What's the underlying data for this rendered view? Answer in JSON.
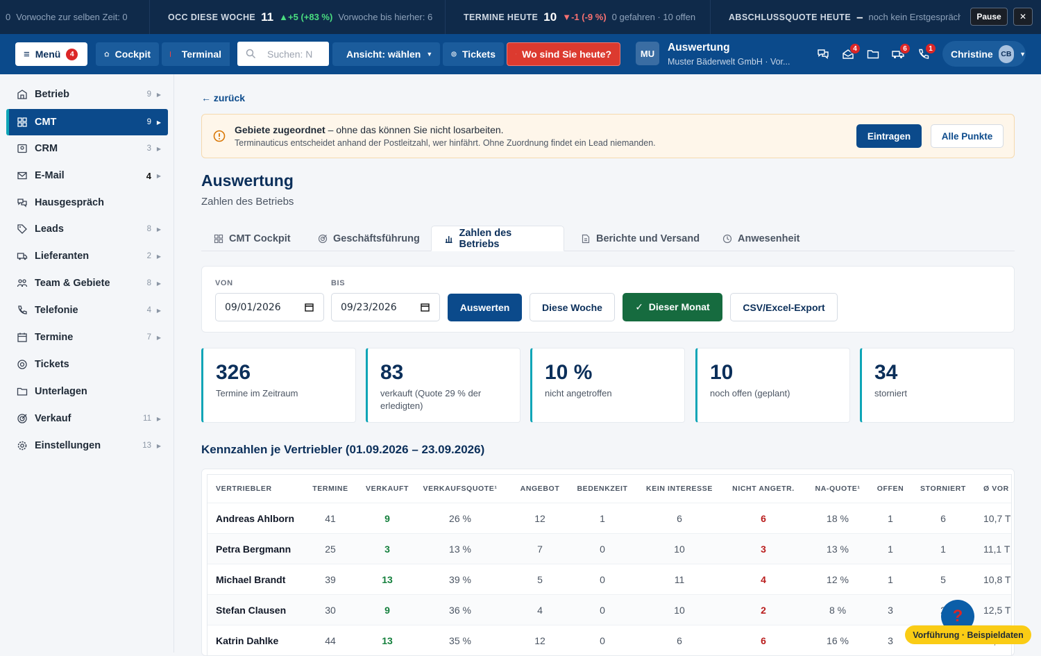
{
  "ticker": {
    "item0": {
      "prefix": "0",
      "text": "Vorwoche zur selben Zeit: 0"
    },
    "item1": {
      "label": "OCC DIESE WOCHE",
      "value": "11",
      "delta": "▲+5 (+83 %)",
      "note": "Vorwoche bis hierher: 6"
    },
    "item2": {
      "label": "TERMINE HEUTE",
      "value": "10",
      "delta": "▼-1 (-9 %)",
      "note": "0 gefahren · 10 offen"
    },
    "item3": {
      "label": "ABSCHLUSSQUOTE HEUTE",
      "value": "–",
      "note": "noch kein Erstgespräch g"
    },
    "pause_label": "Pause",
    "close_label": "✕"
  },
  "nav": {
    "menu_label": "Menü",
    "menu_badge": "4",
    "cockpit_label": "Cockpit",
    "terminal_label": "Terminal",
    "search_placeholder": "Suchen: N",
    "view_label": "Ansicht: wählen",
    "tickets_label": "Tickets",
    "location_label": "Wo sind Sie heute?",
    "context_initials": "MU",
    "context_title": "Auswertung",
    "context_subtitle": "Muster Bäderwelt GmbH · Vor...",
    "icon_badges": [
      "4",
      "6",
      "1"
    ],
    "user_name": "Christine",
    "user_initials": "CB"
  },
  "sidebar": {
    "items": [
      {
        "label": "Betrieb",
        "count": "9",
        "icon": "building-icon"
      },
      {
        "label": "CMT",
        "count": "9",
        "icon": "grid-icon"
      },
      {
        "label": "CRM",
        "count": "3",
        "icon": "contact-card-icon"
      },
      {
        "label": "E-Mail",
        "count": "4",
        "icon": "mail-icon"
      },
      {
        "label": "Hausgespräch",
        "count": "",
        "icon": "chat-icon"
      },
      {
        "label": "Leads",
        "count": "8",
        "icon": "tag-icon"
      },
      {
        "label": "Lieferanten",
        "count": "2",
        "icon": "truck-icon"
      },
      {
        "label": "Team & Gebiete",
        "count": "8",
        "icon": "team-icon"
      },
      {
        "label": "Telefonie",
        "count": "4",
        "icon": "phone-icon"
      },
      {
        "label": "Termine",
        "count": "7",
        "icon": "calendar-icon"
      },
      {
        "label": "Tickets",
        "count": "",
        "icon": "ticket-icon"
      },
      {
        "label": "Unterlagen",
        "count": "",
        "icon": "folder-icon"
      },
      {
        "label": "Verkauf",
        "count": "11",
        "icon": "target-icon"
      },
      {
        "label": "Einstellungen",
        "count": "13",
        "icon": "gear-icon"
      }
    ]
  },
  "page": {
    "back_label": "← zurück",
    "alert_title": "Gebiete zugeordnet",
    "alert_text": " – ohne das können Sie nicht losarbeiten.",
    "alert_detail": "Terminauticus entscheidet anhand der Postleitzahl, wer hinfährt. Ohne Zuordnung findet ein Lead niemanden.",
    "alert_primary": "Eintragen",
    "alert_secondary": "Alle Punkte",
    "title": "Auswertung",
    "subtitle": "Zahlen des Betriebs",
    "tabs": [
      "CMT Cockpit",
      "Geschäftsführung",
      "Zahlen des Betriebs",
      "Berichte und Versand",
      "Anwesenheit"
    ],
    "filter": {
      "from_label": "VON",
      "from_value": "09/01/2026",
      "to_label": "BIS",
      "to_value": "09/23/2026",
      "evaluate_label": "Auswerten",
      "this_week_label": "Diese Woche",
      "this_month_label": "✓  Dieser Monat",
      "export_label": "CSV/Excel-Export"
    },
    "kpis": [
      {
        "value": "326",
        "label": "Termine im Zeitraum"
      },
      {
        "value": "83",
        "label": "verkauft (Quote 29 % der erledigten)"
      },
      {
        "value": "10 %",
        "label": "nicht angetroffen"
      },
      {
        "value": "10",
        "label": "noch offen (geplant)"
      },
      {
        "value": "34",
        "label": "storniert"
      }
    ],
    "section_title": "Kennzahlen je Vertriebler (01.09.2026 – 23.09.2026)",
    "table": {
      "headers": [
        "VERTRIEBLER",
        "TERMINE",
        "VERKAUFT",
        "VERKAUFSQUOTE¹",
        "ANGEBOT",
        "BEDENKZEIT",
        "KEIN INTERESSE",
        "NICHT ANGETR.",
        "NA-QUOTE¹",
        "OFFEN",
        "STORNIERT",
        "Ø VOR"
      ],
      "rows": [
        [
          "Andreas Ahlborn",
          "41",
          "9",
          "26 %",
          "12",
          "1",
          "6",
          "6",
          "18 %",
          "1",
          "6",
          "10,7 T"
        ],
        [
          "Petra Bergmann",
          "25",
          "3",
          "13 %",
          "7",
          "0",
          "10",
          "3",
          "13 %",
          "1",
          "1",
          "11,1 T"
        ],
        [
          "Michael Brandt",
          "39",
          "13",
          "39 %",
          "5",
          "0",
          "11",
          "4",
          "12 %",
          "1",
          "5",
          "10,8 T"
        ],
        [
          "Stefan Clausen",
          "30",
          "9",
          "36 %",
          "4",
          "0",
          "10",
          "2",
          "8 %",
          "3",
          "2",
          "12,5 T"
        ],
        [
          "Katrin Dahlke",
          "44",
          "13",
          "35 %",
          "12",
          "0",
          "6",
          "6",
          "16 %",
          "3",
          "4",
          "11,0 T"
        ]
      ]
    }
  },
  "help_label": "?",
  "demo_label": "Vorführung · Beispieldaten"
}
